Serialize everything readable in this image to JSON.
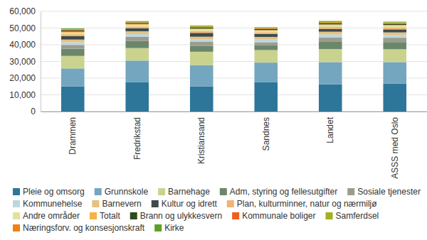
{
  "chart_data": {
    "type": "bar",
    "stacked": true,
    "grid": true,
    "legend": "bottom",
    "categories": [
      "Drammen",
      "Fredrikstad",
      "Kristiansand",
      "Sandnes",
      "Landet",
      "ASSS med Oslo"
    ],
    "ylim": [
      0,
      60000
    ],
    "yticks": [
      0,
      {
        "value": 10000,
        "label": "10,000"
      },
      {
        "value": 20000,
        "label": "20,000"
      },
      {
        "value": 30000,
        "label": "30,000"
      },
      {
        "value": 40000,
        "label": "40,000"
      },
      {
        "value": 50000,
        "label": "50,000"
      },
      {
        "value": 60000,
        "label": "60,000"
      }
    ],
    "series": [
      {
        "name": "Pleie og omsorg",
        "color": "#2e7699",
        "values": [
          15000,
          17500,
          15000,
          17500,
          16300,
          16700
        ]
      },
      {
        "name": "Grunnskole",
        "color": "#74a6bf",
        "values": [
          10800,
          13000,
          12800,
          11800,
          13300,
          12900
        ]
      },
      {
        "name": "Barnehage",
        "color": "#c9d38e",
        "values": [
          7500,
          7500,
          8000,
          7500,
          7800,
          7700
        ]
      },
      {
        "name": "Adm, styring og fellesutgifter",
        "color": "#6b876b",
        "values": [
          4300,
          4200,
          3600,
          3000,
          4600,
          4300
        ]
      },
      {
        "name": "Sosiale tjenester",
        "color": "#9c9c8e",
        "values": [
          2300,
          2500,
          2300,
          1700,
          2400,
          2600
        ]
      },
      {
        "name": "Kommunehelse",
        "color": "#bcd7df",
        "values": [
          1600,
          1700,
          1500,
          1800,
          1800,
          1700
        ]
      },
      {
        "name": "Barnevern",
        "color": "#e5c27f",
        "values": [
          1600,
          1700,
          1600,
          1400,
          1600,
          1500
        ]
      },
      {
        "name": "Kultur og idrett",
        "color": "#3d4b4b",
        "values": [
          2000,
          1800,
          2300,
          1800,
          1700,
          1800
        ]
      },
      {
        "name": "Plan, kulturminner, natur og nærmiljø",
        "color": "#f2b374",
        "values": [
          1200,
          1000,
          1100,
          1000,
          1200,
          1200
        ]
      },
      {
        "name": "Andre områder",
        "color": "#e2e29c",
        "values": [
          1000,
          1100,
          1000,
          900,
          1000,
          1000
        ]
      },
      {
        "name": "Totalt",
        "color": "#f6b244",
        "values": [
          600,
          500,
          500,
          400,
          500,
          500
        ]
      },
      {
        "name": "Brann og ulykkesvern",
        "color": "#2c4c1c",
        "values": [
          700,
          600,
          700,
          600,
          700,
          700
        ]
      },
      {
        "name": "Kommunale boliger",
        "color": "#ef5f1f",
        "values": [
          300,
          300,
          300,
          300,
          300,
          300
        ]
      },
      {
        "name": "Samferdsel",
        "color": "#a2b021",
        "values": [
          300,
          300,
          300,
          300,
          400,
          400
        ]
      },
      {
        "name": "Næringsforv. og konsesjonskraft",
        "color": "#f28112",
        "values": [
          50,
          50,
          50,
          50,
          100,
          100
        ]
      },
      {
        "name": "Kirke",
        "color": "#5f9f22",
        "values": [
          500,
          400,
          400,
          400,
          500,
          400
        ]
      }
    ]
  }
}
